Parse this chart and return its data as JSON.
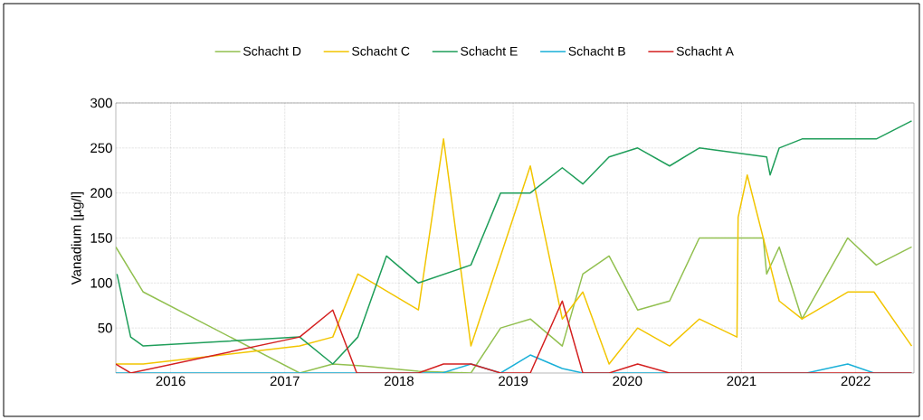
{
  "chart_data": {
    "type": "line",
    "ylabel": "Vanadium [µg/l]",
    "xlim": [
      2015.52,
      2022.51
    ],
    "xticks": [
      2016,
      2017,
      2018,
      2019,
      2020,
      2021,
      2022
    ],
    "ylim": [
      0,
      300
    ],
    "yticks": [
      50,
      100,
      150,
      200,
      250,
      300
    ],
    "grid": true,
    "legend": "top",
    "marker": "none",
    "line_style": "solid",
    "series": [
      {
        "name": "Schacht D",
        "color": "#92c050",
        "x": [
          2015.52,
          2015.76,
          2017.13,
          2017.42,
          2017.67,
          2018.17,
          2018.63,
          2018.89,
          2019.15,
          2019.43,
          2019.61,
          2019.84,
          2020.09,
          2020.37,
          2020.63,
          2021.19,
          2021.22,
          2021.33,
          2021.53,
          2021.93,
          2022.18,
          2022.49
        ],
        "values": [
          140,
          90,
          0,
          10,
          8,
          2,
          0,
          50,
          60,
          30,
          110,
          130,
          70,
          80,
          150,
          150,
          110,
          140,
          60,
          150,
          120,
          140
        ]
      },
      {
        "name": "Schacht C",
        "color": "#f2c500",
        "x": [
          2015.52,
          2015.76,
          2017.13,
          2017.42,
          2017.64,
          2018.17,
          2018.39,
          2018.63,
          2019.15,
          2019.43,
          2019.61,
          2019.84,
          2020.09,
          2020.37,
          2020.63,
          2020.96,
          2020.97,
          2021.05,
          2021.33,
          2021.53,
          2021.93,
          2022.16,
          2022.49
        ],
        "values": [
          10,
          10,
          30,
          40,
          110,
          70,
          260,
          30,
          230,
          60,
          90,
          10,
          50,
          30,
          60,
          40,
          173,
          220,
          80,
          60,
          90,
          90,
          30
        ]
      },
      {
        "name": "Schacht E",
        "color": "#1f9e5a",
        "x": [
          2015.53,
          2015.65,
          2015.76,
          2017.13,
          2017.42,
          2017.64,
          2017.89,
          2018.17,
          2018.63,
          2018.89,
          2019.15,
          2019.43,
          2019.61,
          2019.84,
          2020.09,
          2020.37,
          2020.63,
          2021.22,
          2021.25,
          2021.33,
          2021.53,
          2022.18,
          2022.49
        ],
        "values": [
          110,
          40,
          30,
          40,
          10,
          40,
          130,
          100,
          120,
          200,
          200,
          228,
          210,
          240,
          250,
          230,
          250,
          240,
          220,
          250,
          260,
          260,
          280
        ]
      },
      {
        "name": "Schacht B",
        "color": "#1ab0d8",
        "x": [
          2015.52,
          2018.38,
          2018.63,
          2018.89,
          2019.15,
          2019.43,
          2019.61,
          2021.57,
          2021.93,
          2022.16,
          2022.49
        ],
        "values": [
          0,
          0,
          10,
          0,
          20,
          5,
          0,
          0,
          10,
          0,
          0
        ]
      },
      {
        "name": "Schacht A",
        "color": "#d42020",
        "x": [
          2015.52,
          2015.65,
          2017.13,
          2017.42,
          2017.63,
          2018.17,
          2018.39,
          2018.63,
          2018.89,
          2019.15,
          2019.43,
          2019.61,
          2019.84,
          2020.09,
          2020.37,
          2022.49
        ],
        "values": [
          10,
          0,
          40,
          70,
          0,
          0,
          10,
          10,
          0,
          0,
          80,
          0,
          0,
          10,
          0,
          0
        ]
      }
    ]
  }
}
